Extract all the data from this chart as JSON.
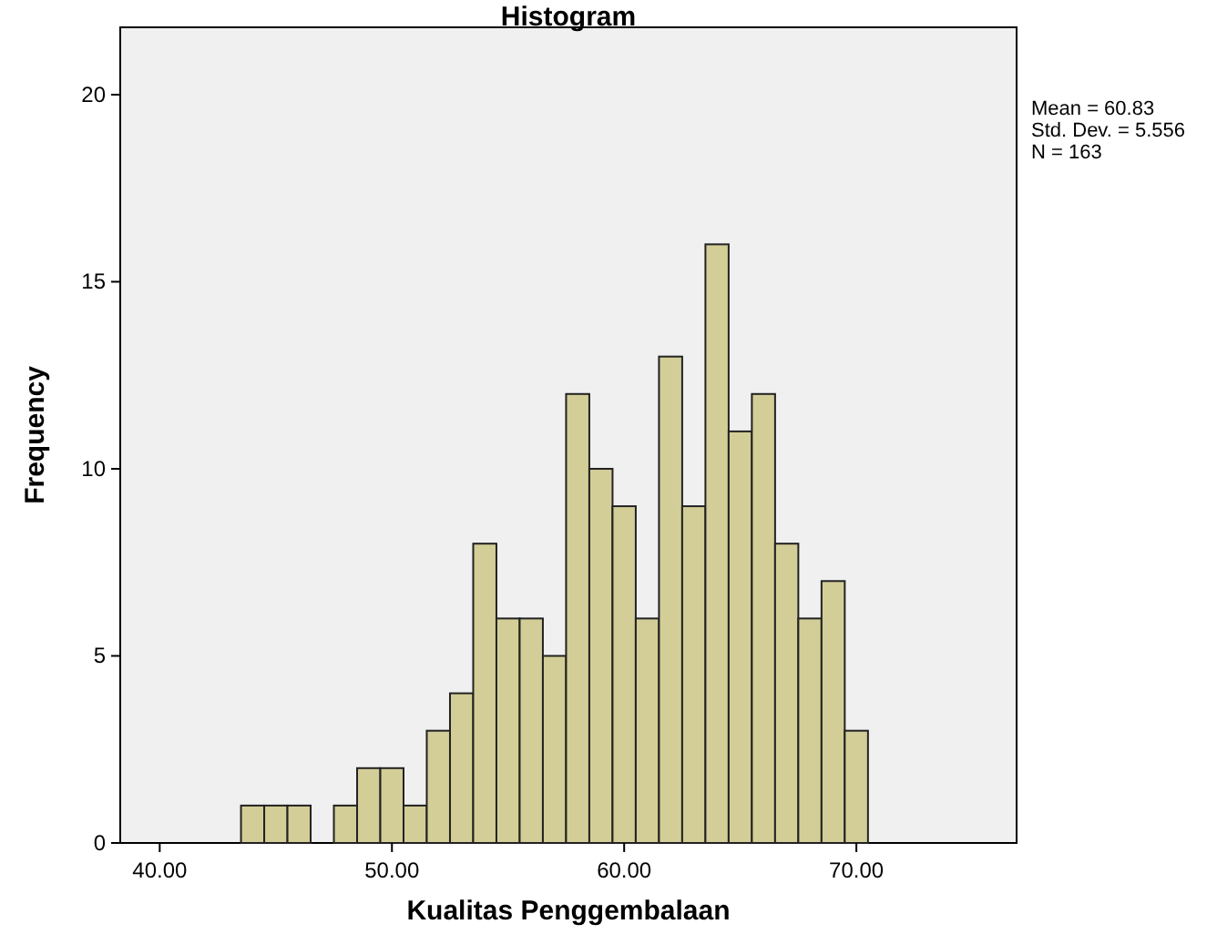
{
  "chart_data": {
    "type": "histogram",
    "title": "Histogram",
    "xlabel": "Kualitas Penggembalaan",
    "ylabel": "Frequency",
    "bins": [
      43.5,
      44.5,
      45.5,
      46.5,
      47.5,
      48.5,
      49.5,
      50.5,
      51.5,
      52.5,
      53.5,
      54.5,
      55.5,
      56.5,
      57.5,
      58.5,
      59.5,
      60.5,
      61.5,
      62.5,
      63.5,
      64.5,
      65.5,
      66.5,
      67.5,
      68.5,
      69.5,
      70.5
    ],
    "values": [
      1,
      1,
      1,
      0,
      1,
      2,
      2,
      1,
      3,
      4,
      8,
      6,
      6,
      5,
      12,
      10,
      9,
      6,
      13,
      9,
      16,
      11,
      12,
      8,
      6,
      7,
      3
    ],
    "color": "#d3ce97",
    "xlim": [
      38.3,
      76.9
    ],
    "xticks": [
      {
        "value": 40,
        "label": "40.00"
      },
      {
        "value": 50,
        "label": "50.00"
      },
      {
        "value": 60,
        "label": "60.00"
      },
      {
        "value": 70,
        "label": "70.00"
      }
    ],
    "ylim": [
      0,
      21.8
    ],
    "yticks": [
      0,
      5,
      10,
      15,
      20
    ],
    "annotations": [
      "Mean = 60.83",
      "Std. Dev. = 5.556",
      "N = 163"
    ]
  }
}
